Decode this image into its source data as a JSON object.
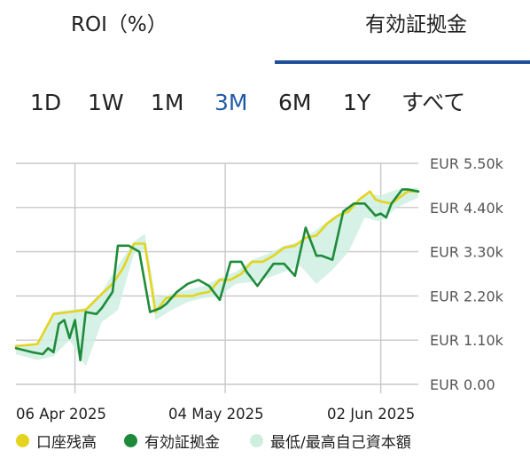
{
  "tabs": [
    {
      "label": "ROI（%）",
      "selected": false
    },
    {
      "label": "有効証拠金",
      "selected": true
    }
  ],
  "ranges": [
    "1D",
    "1W",
    "1M",
    "3M",
    "6M",
    "1Y",
    "すべて"
  ],
  "selected_range": "3M",
  "colors": {
    "accent": "#1f5ba8",
    "balance": "#e4d41f",
    "equity": "#1e8b3a",
    "band": "#cfeee0"
  },
  "legend": [
    {
      "label": "口座残高",
      "color": "#e4d41f"
    },
    {
      "label": "有効証拠金",
      "color": "#1e8b3a"
    },
    {
      "label": "最低/最高自己資本額",
      "color": "#cfeee0"
    }
  ],
  "chart_data": {
    "type": "line",
    "x_ticks": [
      "06 Apr 2025",
      "04 May 2025",
      "02 Jun 2025"
    ],
    "y_ticks": [
      "EUR 0.00",
      "EUR 1.10k",
      "EUR 2.20k",
      "EUR 3.30k",
      "EUR 4.40k",
      "EUR 5.50k"
    ],
    "ylim": [
      0,
      5500
    ],
    "grid": true,
    "legend_position": "bottom",
    "series": [
      {
        "name": "口座残高",
        "x": [
          "2025-03-26",
          "2025-03-30",
          "2025-04-02",
          "2025-04-05",
          "2025-04-08",
          "2025-04-11",
          "2025-04-13",
          "2025-04-15",
          "2025-04-17",
          "2025-04-19",
          "2025-04-21",
          "2025-04-23",
          "2025-04-25",
          "2025-04-28",
          "2025-04-29",
          "2025-05-01",
          "2025-05-03",
          "2025-05-05",
          "2025-05-07",
          "2025-05-09",
          "2025-05-11",
          "2025-05-13",
          "2025-05-15",
          "2025-05-17",
          "2025-05-19",
          "2025-05-21",
          "2025-05-23",
          "2025-05-25",
          "2025-05-27",
          "2025-05-29",
          "2025-05-31",
          "2025-06-01",
          "2025-06-02",
          "2025-06-04",
          "2025-06-05",
          "2025-06-07",
          "2025-06-09"
        ],
        "values": [
          950,
          1000,
          1750,
          1800,
          1850,
          2250,
          2500,
          2900,
          3500,
          3500,
          1800,
          2150,
          2200,
          2200,
          2250,
          2300,
          2600,
          2600,
          2750,
          3050,
          3050,
          3200,
          3400,
          3450,
          3650,
          3700,
          4000,
          4200,
          4300,
          4600,
          4800,
          4600,
          4550,
          4500,
          4600,
          4800,
          4800
        ]
      },
      {
        "name": "有効証拠金",
        "x": [
          "2025-03-26",
          "2025-03-29",
          "2025-03-31",
          "2025-04-01",
          "2025-04-02",
          "2025-04-03",
          "2025-04-04",
          "2025-04-05",
          "2025-04-06",
          "2025-04-07",
          "2025-04-08",
          "2025-04-10",
          "2025-04-11",
          "2025-04-13",
          "2025-04-14",
          "2025-04-16",
          "2025-04-18",
          "2025-04-20",
          "2025-04-22",
          "2025-04-23",
          "2025-04-25",
          "2025-04-27",
          "2025-04-29",
          "2025-05-01",
          "2025-05-03",
          "2025-05-05",
          "2025-05-07",
          "2025-05-08",
          "2025-05-10",
          "2025-05-13",
          "2025-05-15",
          "2025-05-17",
          "2025-05-19",
          "2025-05-21",
          "2025-05-22",
          "2025-05-24",
          "2025-05-26",
          "2025-05-28",
          "2025-05-30",
          "2025-06-01",
          "2025-06-02",
          "2025-06-03",
          "2025-06-04",
          "2025-06-06",
          "2025-06-07",
          "2025-06-09"
        ],
        "values": [
          900,
          800,
          750,
          900,
          800,
          1500,
          1600,
          1150,
          1600,
          600,
          1800,
          1750,
          1900,
          2300,
          3450,
          3450,
          3300,
          1800,
          1900,
          2000,
          2300,
          2500,
          2600,
          2450,
          2100,
          3050,
          3050,
          2800,
          2450,
          3000,
          3000,
          2700,
          3900,
          3200,
          3200,
          3100,
          4300,
          4500,
          4500,
          4200,
          4250,
          4150,
          4500,
          4850,
          4850,
          4800
        ]
      }
    ],
    "band": {
      "name": "最低/最高自己資本額",
      "x": [
        "2025-03-26",
        "2025-03-30",
        "2025-04-02",
        "2025-04-05",
        "2025-04-08",
        "2025-04-11",
        "2025-04-14",
        "2025-04-17",
        "2025-04-19",
        "2025-04-21",
        "2025-04-24",
        "2025-04-27",
        "2025-04-30",
        "2025-05-03",
        "2025-05-06",
        "2025-05-09",
        "2025-05-12",
        "2025-05-15",
        "2025-05-18",
        "2025-05-21",
        "2025-05-24",
        "2025-05-27",
        "2025-05-30",
        "2025-06-02",
        "2025-06-05",
        "2025-06-09"
      ],
      "low": [
        750,
        600,
        700,
        1100,
        450,
        1550,
        1850,
        3250,
        3350,
        1600,
        1850,
        2050,
        2150,
        2200,
        2500,
        2550,
        2650,
        2800,
        2950,
        2500,
        2850,
        3300,
        4150,
        4050,
        4400,
        4650
      ],
      "high": [
        1000,
        950,
        1800,
        1850,
        1900,
        2300,
        2950,
        3550,
        3750,
        2150,
        2250,
        2350,
        2450,
        2650,
        2800,
        3100,
        3250,
        3450,
        3550,
        3850,
        4150,
        4400,
        4750,
        4700,
        4850,
        4900
      ]
    }
  }
}
